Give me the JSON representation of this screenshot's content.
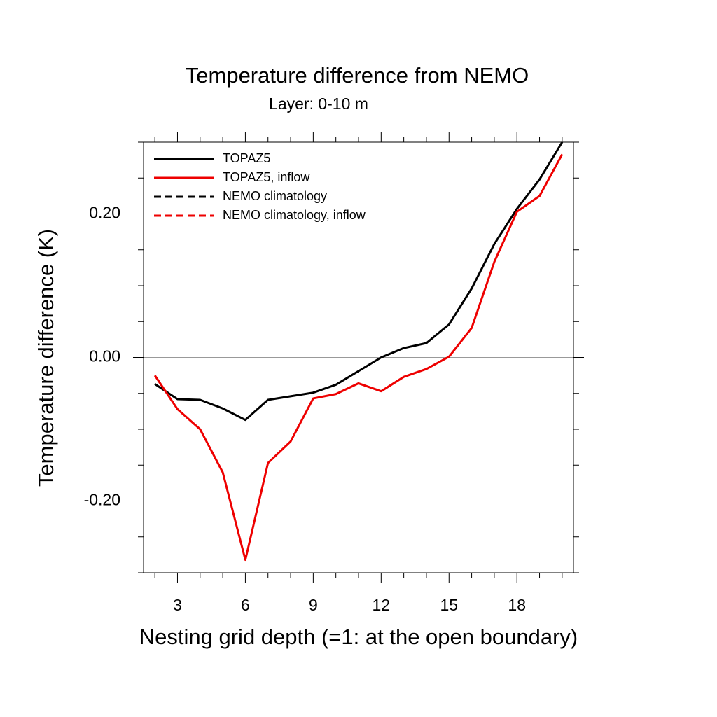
{
  "chart_data": {
    "type": "line",
    "title": "Temperature difference from NEMO",
    "subtitle": "Layer: 0-10 m",
    "x_label": "Nesting grid depth (=1: at the open boundary)",
    "y_label": "Temperature difference (K)",
    "x": [
      2,
      3,
      4,
      5,
      6,
      7,
      8,
      9,
      10,
      11,
      12,
      13,
      14,
      15,
      16,
      17,
      18,
      19,
      20
    ],
    "series": [
      {
        "name": "TOPAZ5",
        "color": "#000000",
        "dash": false,
        "values": [
          -0.037,
          -0.058,
          -0.059,
          -0.071,
          -0.087,
          -0.059,
          -0.054,
          -0.049,
          -0.038,
          -0.019,
          0.0,
          0.013,
          0.02,
          0.046,
          0.096,
          0.158,
          0.207,
          0.248,
          0.3
        ]
      },
      {
        "name": "TOPAZ5, inflow",
        "color": "#ee0000",
        "dash": false,
        "values": [
          -0.025,
          -0.072,
          -0.1,
          -0.16,
          -0.282,
          -0.147,
          -0.117,
          -0.057,
          -0.051,
          -0.036,
          -0.047,
          -0.027,
          -0.016,
          0.001,
          0.041,
          0.133,
          0.203,
          0.225,
          0.283
        ]
      },
      {
        "name": "NEMO climatology",
        "color": "#000000",
        "dash": true,
        "values": [
          null,
          null,
          null,
          null,
          null,
          null,
          null,
          null,
          null,
          null,
          null,
          null,
          null,
          null,
          null,
          null,
          null,
          null,
          null
        ]
      },
      {
        "name": "NEMO climatology, inflow",
        "color": "#ee0000",
        "dash": true,
        "values": [
          null,
          null,
          null,
          null,
          null,
          null,
          null,
          null,
          null,
          null,
          null,
          null,
          null,
          null,
          null,
          null,
          null,
          null,
          null
        ]
      }
    ],
    "xlim": [
      1.5,
      20.5
    ],
    "xticks": [
      3,
      6,
      9,
      12,
      15,
      18
    ],
    "xminorticks": [
      2,
      4,
      5,
      7,
      8,
      10,
      11,
      13,
      14,
      16,
      17,
      19,
      20
    ],
    "ylim": [
      -0.3,
      0.3
    ],
    "yticks": [
      {
        "value": -0.2,
        "label": "-0.20"
      },
      {
        "value": 0,
        "label": "0.00"
      },
      {
        "value": 0.2,
        "label": "0.20"
      }
    ],
    "yminorticks": [
      -0.3,
      -0.25,
      -0.15,
      -0.1,
      -0.05,
      0.05,
      0.1,
      0.15,
      0.25,
      0.3
    ],
    "zero_line": true,
    "legend": "top-left"
  }
}
